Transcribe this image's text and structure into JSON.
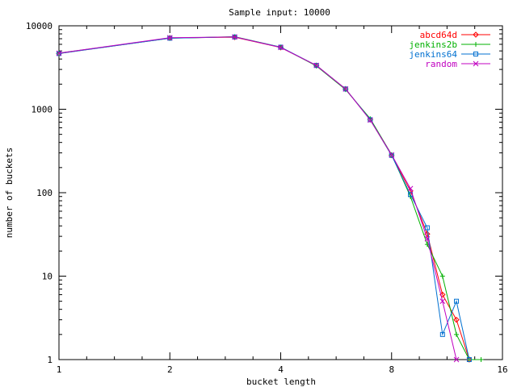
{
  "chart_data": {
    "type": "line",
    "title": "Sample input: 10000",
    "xlabel": "bucket length",
    "ylabel": "number of buckets",
    "x_scale": "log2",
    "y_scale": "log10",
    "xlim": [
      1,
      16
    ],
    "ylim": [
      1,
      10000
    ],
    "x_ticks": [
      1,
      2,
      4,
      8,
      16
    ],
    "x_tick_labels": [
      "1",
      "2",
      "4",
      "8",
      "16"
    ],
    "y_ticks": [
      1,
      10,
      100,
      1000,
      10000
    ],
    "y_tick_labels": [
      "1",
      "10",
      "100",
      "1000",
      "10000"
    ],
    "grid": false,
    "legend_position": "top-right",
    "x": [
      1,
      2,
      3,
      4,
      5,
      6,
      7,
      8,
      9,
      10,
      11,
      12,
      13,
      14
    ],
    "series": [
      {
        "name": "abcd64d",
        "color": "#ff0000",
        "marker": "diamond",
        "values": [
          4650,
          7150,
          7300,
          5500,
          3350,
          1750,
          750,
          280,
          105,
          32,
          6,
          3,
          1,
          null
        ]
      },
      {
        "name": "jenkins2b",
        "color": "#00b000",
        "marker": "plus",
        "values": [
          4700,
          7100,
          7400,
          5550,
          3300,
          1720,
          770,
          285,
          90,
          24,
          10,
          2,
          1,
          1
        ]
      },
      {
        "name": "jenkins64",
        "color": "#0070d0",
        "marker": "square",
        "values": [
          4650,
          7100,
          7350,
          5550,
          3350,
          1750,
          750,
          280,
          95,
          38,
          2,
          5,
          1,
          null
        ]
      },
      {
        "name": "random",
        "color": "#c000c0",
        "marker": "x",
        "values": [
          4700,
          7200,
          7350,
          5500,
          3350,
          1750,
          740,
          285,
          112,
          28,
          5,
          1,
          null,
          null
        ]
      }
    ]
  }
}
